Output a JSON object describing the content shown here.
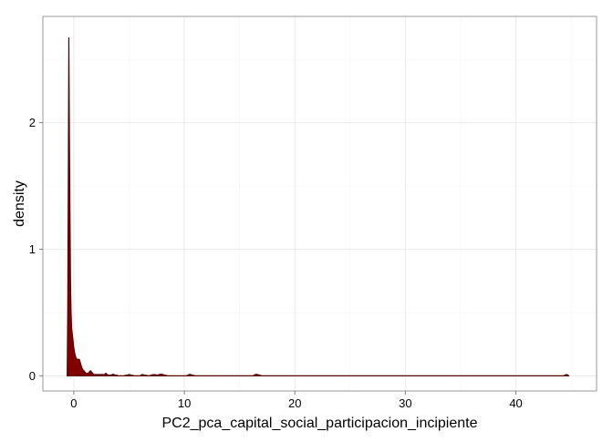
{
  "chart_data": {
    "type": "area",
    "title": "",
    "xlabel": "PC2_pca_capital_social_participacion_incipiente",
    "ylabel": "density",
    "xlim": [
      -2.8,
      47.3
    ],
    "ylim": [
      -0.12,
      2.84
    ],
    "x_ticks": [
      0,
      10,
      20,
      30,
      40
    ],
    "y_ticks": [
      0,
      1,
      2
    ],
    "x_tick_labels": [
      "0",
      "10",
      "20",
      "30",
      "40"
    ],
    "y_tick_labels": [
      "0",
      "1",
      "2"
    ],
    "grid": true,
    "legend": "none",
    "fill_color": "#800000",
    "outline_color": "#5a0000",
    "series": [
      {
        "x": [
          -0.6,
          -0.55,
          -0.5,
          -0.45,
          -0.4,
          -0.35,
          -0.3,
          -0.25,
          -0.2,
          -0.15,
          -0.1,
          0.0,
          0.1,
          0.2,
          0.3,
          0.4,
          0.5,
          0.6,
          0.7,
          0.8,
          0.9,
          1.0,
          1.1,
          1.2,
          1.3,
          1.4,
          1.5,
          1.6,
          1.7,
          1.8,
          1.9,
          2.0,
          2.2,
          2.4,
          2.6,
          2.8,
          2.9,
          3.0,
          3.1,
          3.2,
          3.4,
          3.5,
          3.6,
          3.7,
          3.8,
          3.9,
          4.0,
          4.5,
          4.8,
          5.0,
          5.2,
          5.5,
          6.0,
          6.2,
          6.4,
          6.8,
          7.0,
          7.2,
          7.6,
          7.8,
          8.0,
          8.2,
          8.5,
          10.2,
          10.5,
          10.7,
          11.0,
          16.2,
          16.5,
          16.8,
          17.0,
          44.3,
          44.6,
          44.8
        ],
        "y": [
          0.0,
          0.5,
          1.5,
          2.67,
          1.9,
          1.3,
          0.75,
          0.5,
          0.38,
          0.34,
          0.3,
          0.22,
          0.17,
          0.14,
          0.13,
          0.13,
          0.13,
          0.1,
          0.07,
          0.05,
          0.04,
          0.03,
          0.02,
          0.02,
          0.02,
          0.03,
          0.04,
          0.03,
          0.02,
          0.01,
          0.01,
          0.01,
          0.01,
          0.01,
          0.01,
          0.01,
          0.02,
          0.01,
          0.005,
          0.005,
          0.005,
          0.012,
          0.012,
          0.005,
          0.005,
          0.005,
          0.0,
          0.0,
          0.005,
          0.01,
          0.005,
          0.0,
          0.0,
          0.01,
          0.005,
          0.0,
          0.005,
          0.01,
          0.005,
          0.012,
          0.012,
          0.005,
          0.0,
          0.0,
          0.012,
          0.005,
          0.0,
          0.0,
          0.012,
          0.005,
          0.0,
          0.0,
          0.01,
          0.0
        ]
      }
    ]
  }
}
